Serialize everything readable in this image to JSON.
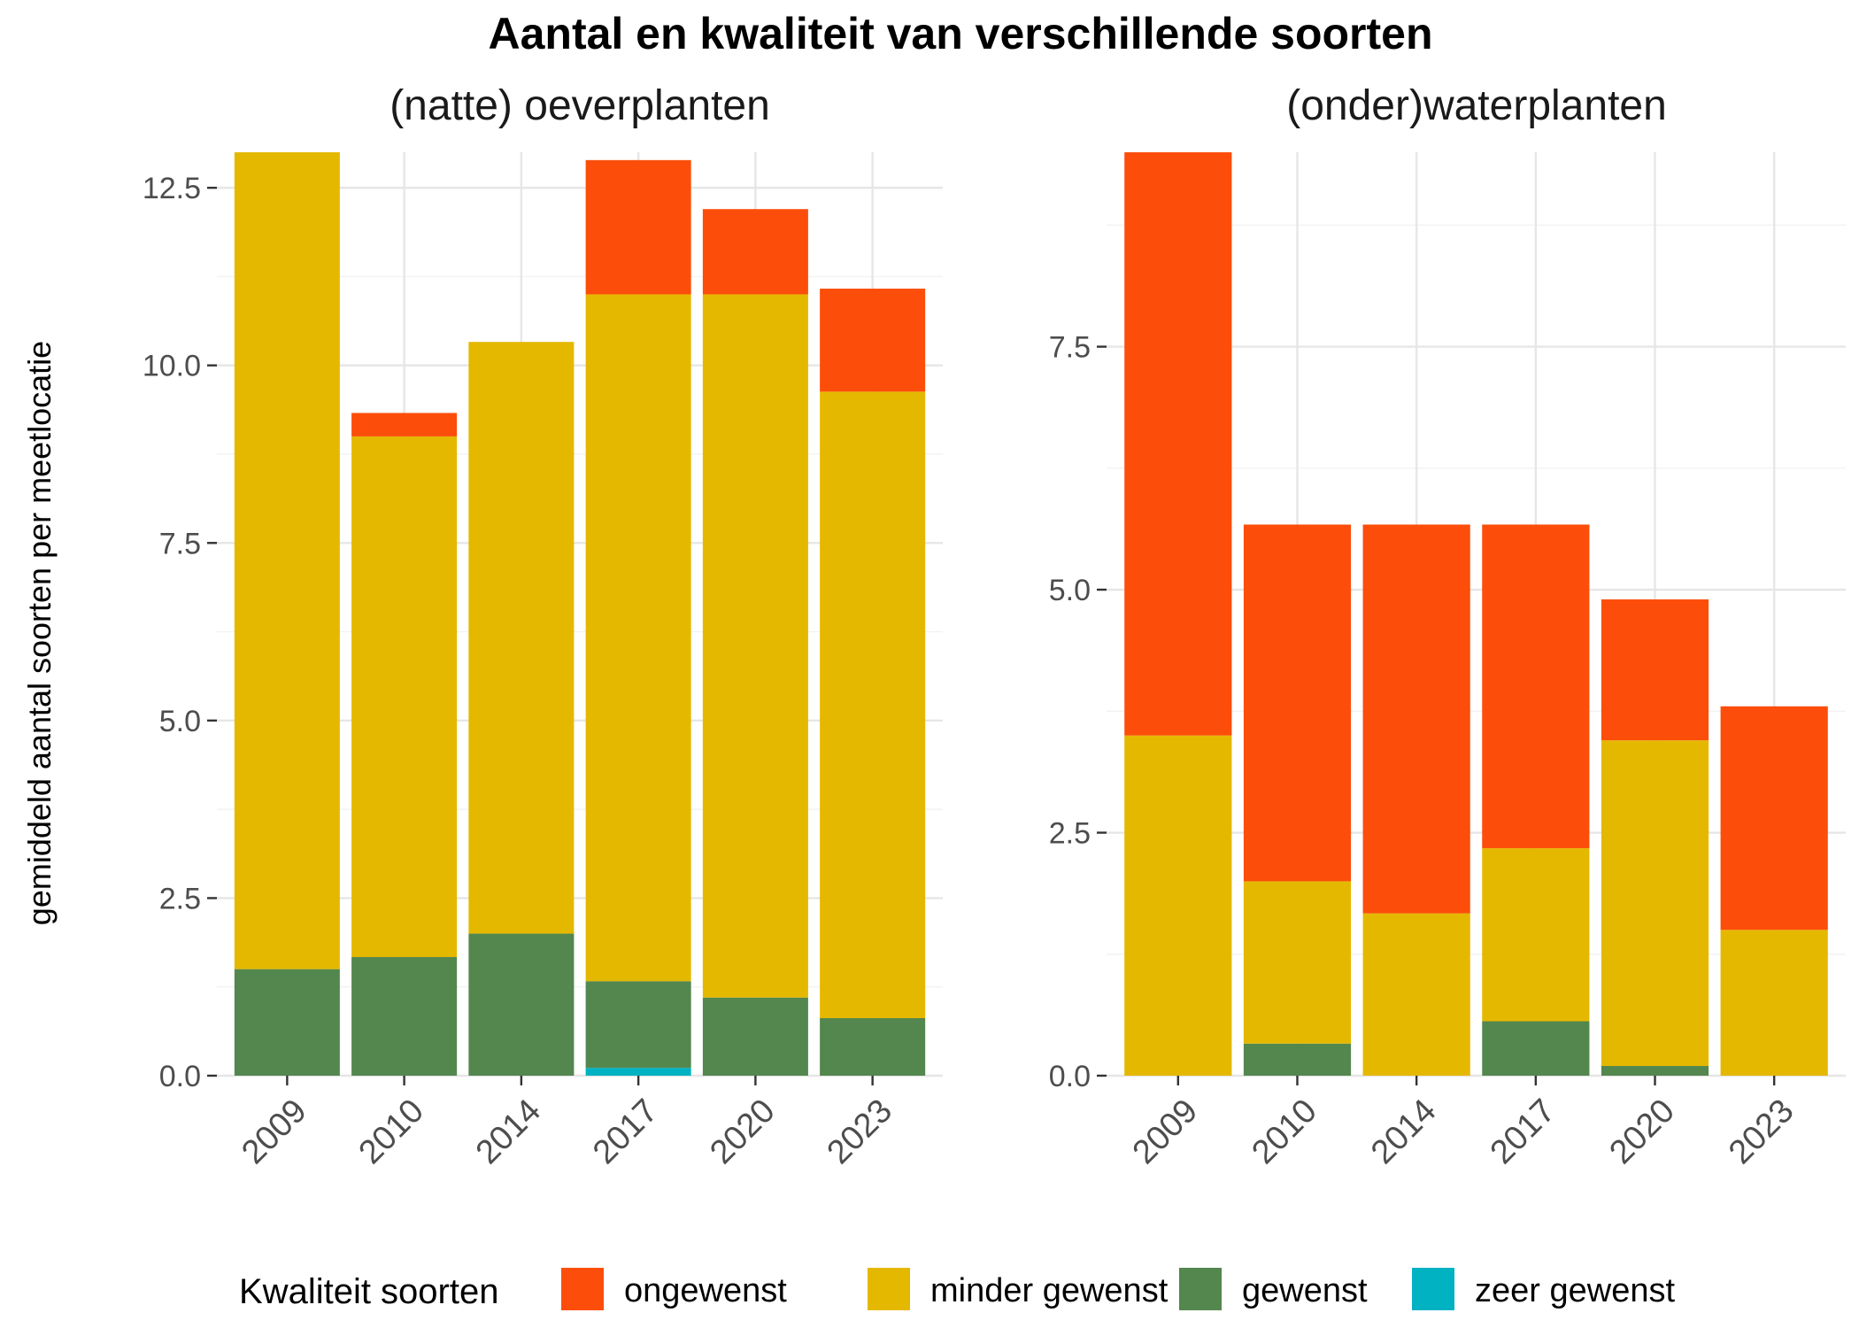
{
  "chart_data": {
    "type": "bar",
    "stacked": true,
    "title": "Aantal en kwaliteit van verschillende soorten",
    "ylabel": "gemiddeld aantal soorten per meetlocatie",
    "legend": {
      "title": "Kwaliteit soorten",
      "position": "bottom",
      "items": [
        {
          "name": "ongewenst",
          "color": "#FC4E0A"
        },
        {
          "name": "minder gewenst",
          "color": "#E5B800"
        },
        {
          "name": "gewenst",
          "color": "#53874E"
        },
        {
          "name": "zeer gewenst",
          "color": "#00B2C2"
        }
      ]
    },
    "grid": true,
    "panels": [
      {
        "title": "(natte) oeverplanten",
        "categories": [
          "2009",
          "2010",
          "2014",
          "2017",
          "2020",
          "2023"
        ],
        "ylim": [
          0,
          13
        ],
        "yticks": [
          "0.0",
          "2.5",
          "5.0",
          "7.5",
          "10.0",
          "12.5"
        ],
        "series": [
          {
            "name": "zeer gewenst",
            "color": "#00B2C2",
            "values": [
              0,
              0,
              0,
              0.11,
              0,
              0
            ]
          },
          {
            "name": "gewenst",
            "color": "#53874E",
            "values": [
              1.5,
              1.67,
              2.0,
              1.22,
              1.1,
              0.81
            ]
          },
          {
            "name": "minder gewenst",
            "color": "#E5B800",
            "values": [
              11.5,
              7.33,
              8.33,
              9.67,
              9.9,
              8.82
            ]
          },
          {
            "name": "ongewenst",
            "color": "#FC4E0A",
            "values": [
              0,
              0.33,
              0,
              1.89,
              1.2,
              1.45
            ]
          }
        ]
      },
      {
        "title": "(onder)waterplanten",
        "categories": [
          "2009",
          "2010",
          "2014",
          "2017",
          "2020",
          "2023"
        ],
        "ylim": [
          0,
          9.5
        ],
        "yticks": [
          "0.0",
          "2.5",
          "5.0",
          "7.5"
        ],
        "series": [
          {
            "name": "zeer gewenst",
            "color": "#00B2C2",
            "values": [
              0,
              0,
              0,
              0,
              0,
              0
            ]
          },
          {
            "name": "gewenst",
            "color": "#53874E",
            "values": [
              0,
              0.33,
              0,
              0.56,
              0.1,
              0
            ]
          },
          {
            "name": "minder gewenst",
            "color": "#E5B800",
            "values": [
              3.5,
              1.67,
              1.67,
              1.78,
              3.35,
              1.5
            ]
          },
          {
            "name": "ongewenst",
            "color": "#FC4E0A",
            "values": [
              6.0,
              3.67,
              4.0,
              3.33,
              1.45,
              2.3
            ]
          }
        ]
      }
    ]
  }
}
